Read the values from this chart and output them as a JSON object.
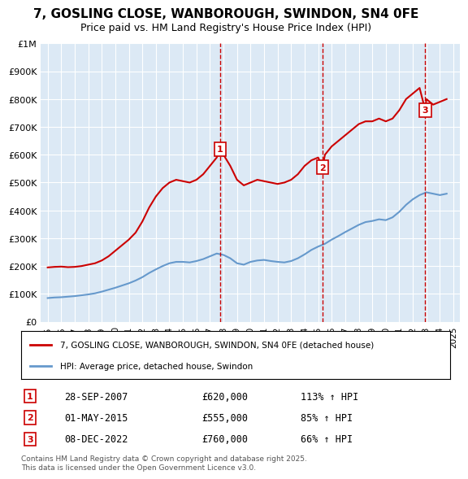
{
  "title": "7, GOSLING CLOSE, WANBOROUGH, SWINDON, SN4 0FE",
  "subtitle": "Price paid vs. HM Land Registry's House Price Index (HPI)",
  "legend_label_red": "7, GOSLING CLOSE, WANBOROUGH, SWINDON, SN4 0FE (detached house)",
  "legend_label_blue": "HPI: Average price, detached house, Swindon",
  "footer": "Contains HM Land Registry data © Crown copyright and database right 2025.\nThis data is licensed under the Open Government Licence v3.0.",
  "transactions": [
    {
      "num": 1,
      "date": "28-SEP-2007",
      "price": "£620,000",
      "hpi": "113% ↑ HPI",
      "x": 2007.75
    },
    {
      "num": 2,
      "date": "01-MAY-2015",
      "price": "£555,000",
      "hpi": "85% ↑ HPI",
      "x": 2015.33
    },
    {
      "num": 3,
      "date": "08-DEC-2022",
      "price": "£760,000",
      "hpi": "66% ↑ HPI",
      "x": 2022.92
    }
  ],
  "red_line": {
    "x": [
      1995.0,
      1995.5,
      1996.0,
      1996.5,
      1997.0,
      1997.5,
      1998.0,
      1998.5,
      1999.0,
      1999.5,
      2000.0,
      2000.5,
      2001.0,
      2001.5,
      2002.0,
      2002.5,
      2003.0,
      2003.5,
      2004.0,
      2004.5,
      2005.0,
      2005.5,
      2006.0,
      2006.5,
      2007.0,
      2007.5,
      2007.75,
      2008.0,
      2008.5,
      2009.0,
      2009.5,
      2010.0,
      2010.5,
      2011.0,
      2011.5,
      2012.0,
      2012.5,
      2013.0,
      2013.5,
      2014.0,
      2014.5,
      2015.0,
      2015.33,
      2015.5,
      2016.0,
      2016.5,
      2017.0,
      2017.5,
      2018.0,
      2018.5,
      2019.0,
      2019.5,
      2020.0,
      2020.5,
      2021.0,
      2021.5,
      2022.0,
      2022.5,
      2022.92,
      2023.0,
      2023.5,
      2024.0,
      2024.5
    ],
    "y": [
      195000,
      197000,
      198000,
      196000,
      197000,
      200000,
      205000,
      210000,
      220000,
      235000,
      255000,
      275000,
      295000,
      320000,
      360000,
      410000,
      450000,
      480000,
      500000,
      510000,
      505000,
      500000,
      510000,
      530000,
      560000,
      590000,
      620000,
      600000,
      560000,
      510000,
      490000,
      500000,
      510000,
      505000,
      500000,
      495000,
      500000,
      510000,
      530000,
      560000,
      580000,
      590000,
      555000,
      600000,
      630000,
      650000,
      670000,
      690000,
      710000,
      720000,
      720000,
      730000,
      720000,
      730000,
      760000,
      800000,
      820000,
      840000,
      760000,
      800000,
      780000,
      790000,
      800000
    ]
  },
  "blue_line": {
    "x": [
      1995.0,
      1995.5,
      1996.0,
      1996.5,
      1997.0,
      1997.5,
      1998.0,
      1998.5,
      1999.0,
      1999.5,
      2000.0,
      2000.5,
      2001.0,
      2001.5,
      2002.0,
      2002.5,
      2003.0,
      2003.5,
      2004.0,
      2004.5,
      2005.0,
      2005.5,
      2006.0,
      2006.5,
      2007.0,
      2007.5,
      2008.0,
      2008.5,
      2009.0,
      2009.5,
      2010.0,
      2010.5,
      2011.0,
      2011.5,
      2012.0,
      2012.5,
      2013.0,
      2013.5,
      2014.0,
      2014.5,
      2015.0,
      2015.5,
      2016.0,
      2016.5,
      2017.0,
      2017.5,
      2018.0,
      2018.5,
      2019.0,
      2019.5,
      2020.0,
      2020.5,
      2021.0,
      2021.5,
      2022.0,
      2022.5,
      2023.0,
      2023.5,
      2024.0,
      2024.5
    ],
    "y": [
      85000,
      87000,
      88000,
      90000,
      92000,
      95000,
      98000,
      102000,
      108000,
      115000,
      122000,
      130000,
      138000,
      148000,
      160000,
      175000,
      188000,
      200000,
      210000,
      215000,
      215000,
      213000,
      218000,
      225000,
      235000,
      245000,
      240000,
      228000,
      210000,
      205000,
      215000,
      220000,
      222000,
      218000,
      215000,
      213000,
      218000,
      228000,
      242000,
      258000,
      270000,
      280000,
      295000,
      308000,
      322000,
      335000,
      348000,
      358000,
      362000,
      368000,
      365000,
      375000,
      395000,
      420000,
      440000,
      455000,
      465000,
      460000,
      455000,
      460000
    ]
  },
  "ylim": [
    0,
    1000000
  ],
  "xlim": [
    1994.5,
    2025.5
  ],
  "yticks": [
    0,
    100000,
    200000,
    300000,
    400000,
    500000,
    600000,
    700000,
    800000,
    900000,
    1000000
  ],
  "ytick_labels": [
    "£0",
    "£100K",
    "£200K",
    "£300K",
    "£400K",
    "£500K",
    "£600K",
    "£700K",
    "£800K",
    "£900K",
    "£1M"
  ],
  "xticks": [
    1995,
    1996,
    1997,
    1998,
    1999,
    2000,
    2001,
    2002,
    2003,
    2004,
    2005,
    2006,
    2007,
    2008,
    2009,
    2010,
    2011,
    2012,
    2013,
    2014,
    2015,
    2016,
    2017,
    2018,
    2019,
    2020,
    2021,
    2022,
    2023,
    2024,
    2025
  ],
  "background_color": "#dce9f5",
  "plot_bg": "#dce9f5",
  "red_color": "#cc0000",
  "blue_color": "#6699cc",
  "grid_color": "#ffffff",
  "marker_color_red": "#cc0000",
  "marker_color_blue": "#6699cc"
}
